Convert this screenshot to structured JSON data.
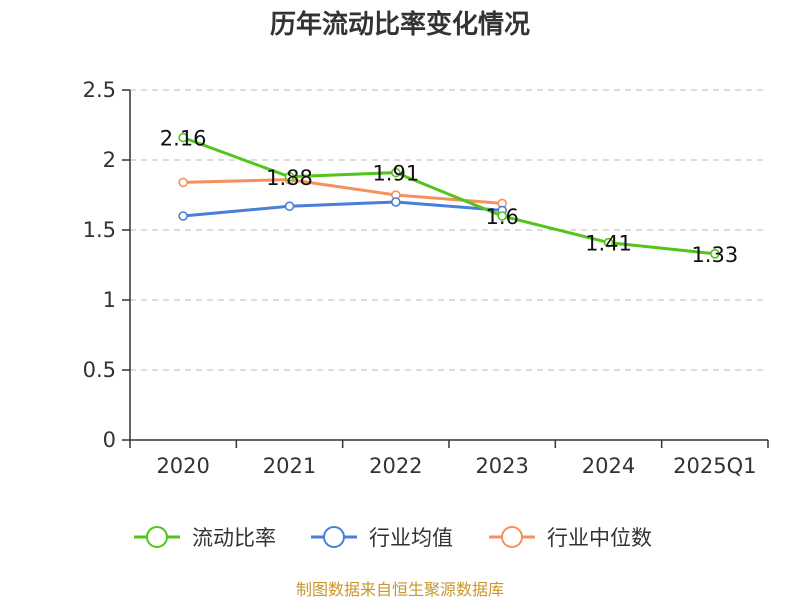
{
  "chart_data": {
    "type": "line",
    "title": "历年流动比率变化情况",
    "xlabel": "",
    "ylabel": "",
    "categories": [
      "2020",
      "2021",
      "2022",
      "2023",
      "2024",
      "2025Q1"
    ],
    "ylim": [
      0,
      2.5
    ],
    "yticks": [
      "0",
      "0.5",
      "1",
      "1.5",
      "2",
      "2.5"
    ],
    "grid": true,
    "legend_position": "bottom",
    "series": [
      {
        "name": "流动比率",
        "color": "#52c41a",
        "values": [
          2.16,
          1.88,
          1.91,
          1.6,
          1.41,
          1.33
        ],
        "labels": [
          "2.16",
          "1.88",
          "1.91",
          "1.6",
          "1.41",
          "1.33"
        ]
      },
      {
        "name": "行业均值",
        "color": "#4a7fd8",
        "values": [
          1.6,
          1.67,
          1.7,
          1.64,
          null,
          null
        ]
      },
      {
        "name": "行业中位数",
        "color": "#f4915c",
        "values": [
          1.84,
          1.86,
          1.75,
          1.69,
          null,
          null
        ]
      }
    ],
    "source": "制图数据来自恒生聚源数据库"
  }
}
